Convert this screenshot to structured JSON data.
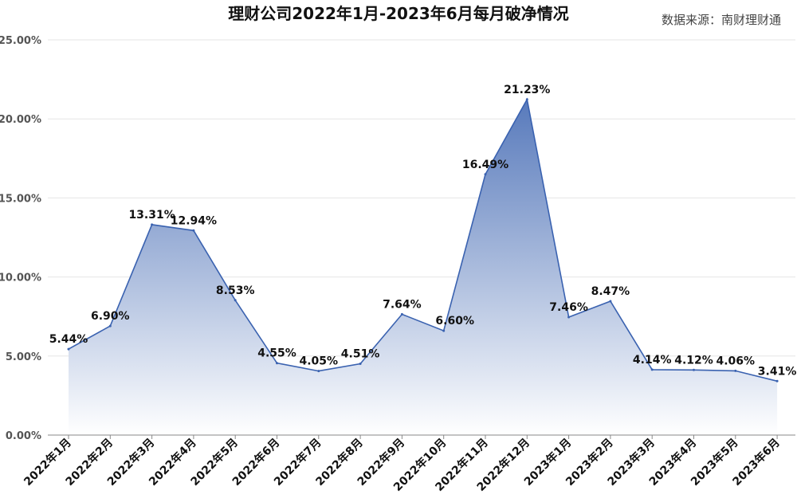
{
  "chart_data": {
    "type": "area",
    "title": "理财公司2022年1月-2023年6月每月破净情况",
    "source": "数据来源：南财理财通",
    "categories": [
      "2022年1月",
      "2022年2月",
      "2022年3月",
      "2022年4月",
      "2022年5月",
      "2022年6月",
      "2022年7月",
      "2022年8月",
      "2022年9月",
      "2022年10月",
      "2022年11月",
      "2022年12月",
      "2023年1月",
      "2023年2月",
      "2023年3月",
      "2023年4月",
      "2023年5月",
      "2023年6月"
    ],
    "values": [
      5.44,
      6.9,
      13.31,
      12.94,
      8.53,
      4.55,
      4.05,
      4.51,
      7.64,
      6.6,
      16.49,
      21.23,
      7.46,
      8.47,
      4.14,
      4.12,
      4.06,
      3.41
    ],
    "data_labels": [
      "5.44%",
      "6.90%",
      "13.31%",
      "12.94%",
      "8.53%",
      "4.55%",
      "4.05%",
      "4.51%",
      "7.64%",
      "6.60%",
      "16.49%",
      "21.23%",
      "7.46%",
      "8.47%",
      "4.14%",
      "4.12%",
      "4.06%",
      "3.41%"
    ],
    "yticks": [
      0,
      5,
      10,
      15,
      20,
      25
    ],
    "ytick_labels": [
      "0.00%",
      "5.00%",
      "10.00%",
      "15.00%",
      "20.00%",
      "25.00%"
    ],
    "ylim": [
      0,
      25
    ],
    "grid": true,
    "legend": "none",
    "colors": {
      "line": "#3a62b0",
      "fill_top": "#4f73b8",
      "fill_bottom": "#ffffff",
      "grid": "#e6e6e6",
      "axis": "#888888"
    }
  }
}
